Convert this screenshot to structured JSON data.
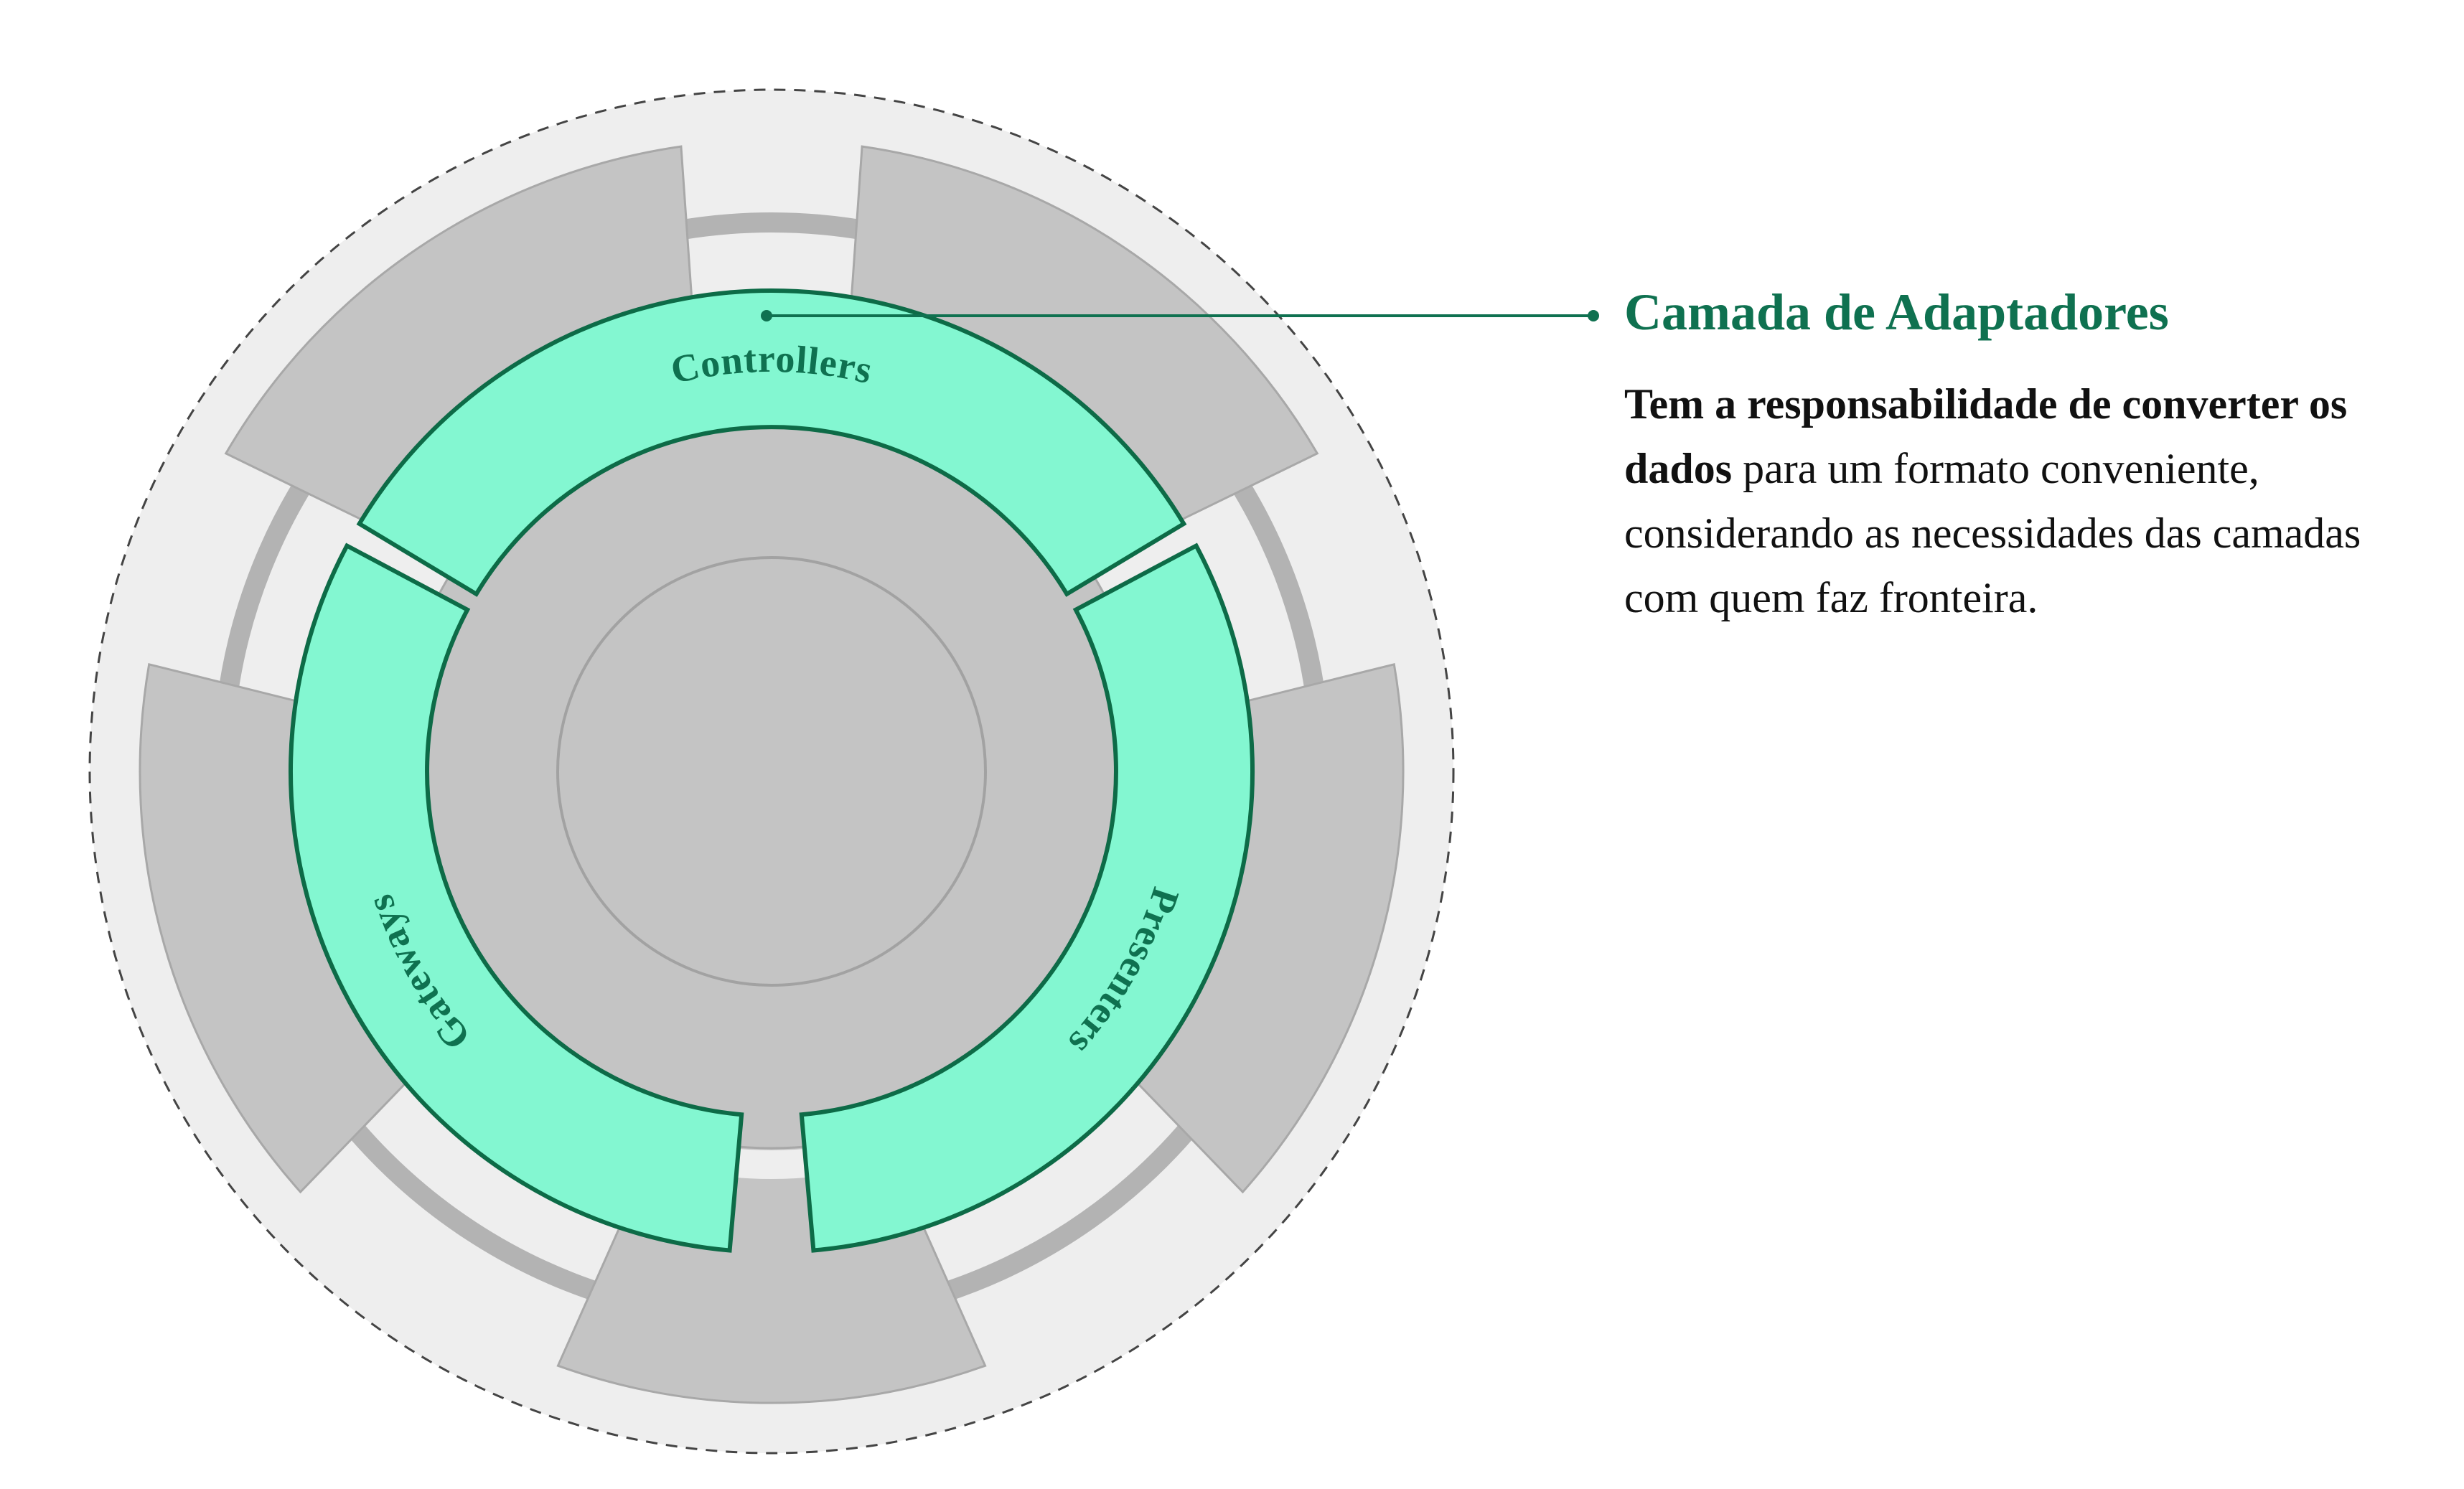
{
  "colors": {
    "page_background": "#ffffff",
    "outer_disc": "#eeeeee",
    "outer_disc_border": "#444444",
    "gray_segment": "#c4c4c4",
    "gray_segment_border": "#a8a8a8",
    "track_ring": "#b3b3b3",
    "track_gap": "#eeeeee",
    "core_stroke": "#a2a2a2",
    "highlight_fill": "#83f7d1",
    "highlight_stroke": "#0d6b47",
    "accent_text": "#0f7150",
    "body_text": "#111111"
  },
  "diagram": {
    "segments": [
      {
        "key": "controllers",
        "label": "Controllers"
      },
      {
        "key": "presenters",
        "label": "Presenters"
      },
      {
        "key": "gateways",
        "label": "Gateways"
      }
    ]
  },
  "panel": {
    "title": "Camada de Adaptadores",
    "desc_bold": "Tem a responsabilidade de converter os dados",
    "desc_rest": " para um formato conveniente, considerando as necessidades das camadas com quem faz fronteira."
  }
}
